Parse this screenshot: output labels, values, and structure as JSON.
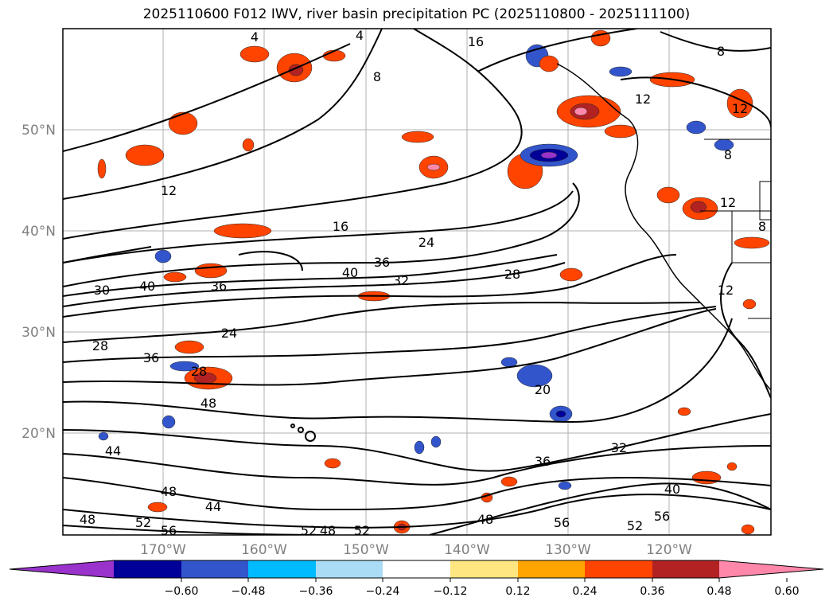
{
  "title": "2025110600 F012 IWV, river basin precipitation PC (2025110800 - 2025111100)",
  "lat_labels": [
    "50°N",
    "40°N",
    "30°N",
    "20°N"
  ],
  "lon_labels": [
    "170°W",
    "160°W",
    "150°W",
    "140°W",
    "130°W",
    "120°W"
  ],
  "colorbar": {
    "ticks": [
      "−0.60",
      "−0.48",
      "−0.36",
      "−0.24",
      "−0.12",
      "0.12",
      "0.24",
      "0.36",
      "0.48",
      "0.60"
    ],
    "colors": [
      "#9933cc",
      "#000099",
      "#3355cc",
      "#00bbff",
      "#aaddf5",
      "#ffffff",
      "#ffe680",
      "#ffa500",
      "#ff4400",
      "#b22222",
      "#ff88aa"
    ]
  },
  "contour_labels": [
    "4",
    "4",
    "16",
    "8",
    "8",
    "12",
    "12",
    "8",
    "12",
    "16",
    "24",
    "40",
    "36",
    "32",
    "28",
    "36",
    "30",
    "40",
    "24",
    "28",
    "36",
    "28",
    "48",
    "44",
    "48",
    "44",
    "52",
    "56",
    "48",
    "52",
    "48",
    "52",
    "20",
    "32",
    "36",
    "40",
    "56",
    "52",
    "48",
    "56",
    "12",
    "8",
    "12"
  ]
}
